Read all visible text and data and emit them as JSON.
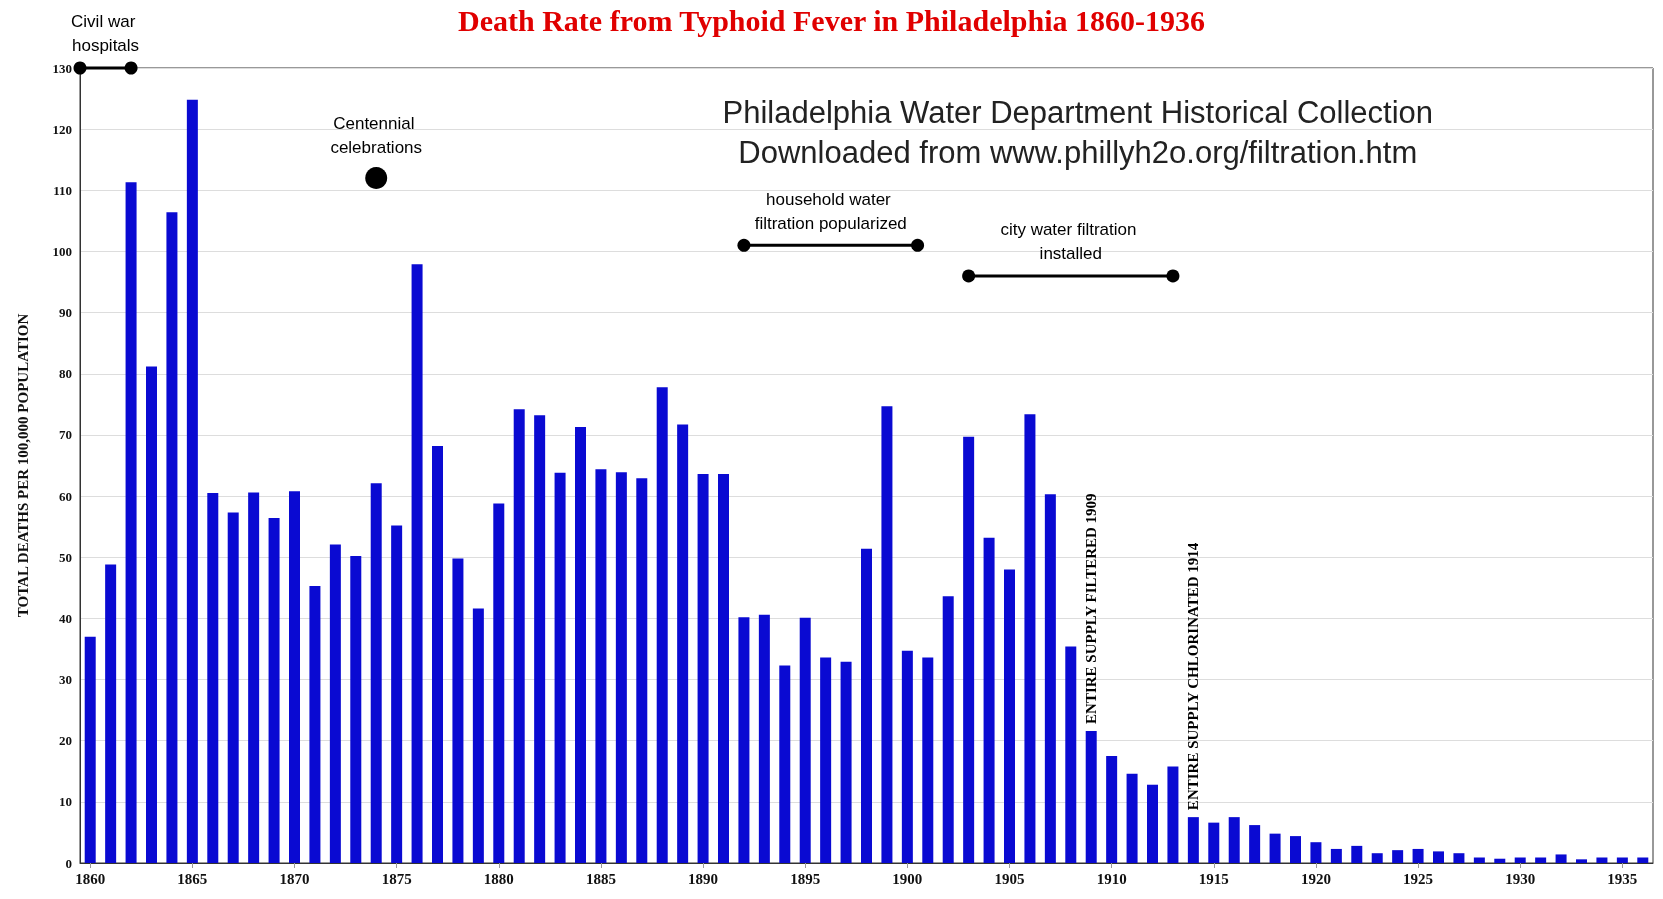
{
  "chart_data": {
    "type": "bar",
    "title": "Death Rate from Typhoid Fever in Philadelphia 1860-1936",
    "ylabel": "TOTAL DEATHS PER 100,000 POPULATION",
    "x": [
      1860,
      1861,
      1862,
      1863,
      1864,
      1865,
      1866,
      1867,
      1868,
      1869,
      1870,
      1871,
      1872,
      1873,
      1874,
      1875,
      1876,
      1877,
      1878,
      1879,
      1880,
      1881,
      1882,
      1883,
      1884,
      1885,
      1886,
      1887,
      1888,
      1889,
      1890,
      1891,
      1892,
      1893,
      1894,
      1895,
      1896,
      1897,
      1898,
      1899,
      1900,
      1901,
      1902,
      1903,
      1904,
      1905,
      1906,
      1907,
      1908,
      1909,
      1910,
      1911,
      1912,
      1913,
      1914,
      1915,
      1916,
      1917,
      1918,
      1919,
      1920,
      1921,
      1922,
      1923,
      1924,
      1925,
      1926,
      1927,
      1928,
      1929,
      1930,
      1931,
      1932,
      1933,
      1934,
      1935,
      1936
    ],
    "series": [
      {
        "color": "#0a0ad2",
        "values": [
          37,
          48.8,
          111.3,
          81.2,
          106.4,
          124.8,
          60.5,
          57.3,
          60.6,
          56.4,
          60.8,
          45.3,
          52.1,
          50.2,
          62.1,
          55.2,
          97.9,
          68.2,
          49.8,
          41.6,
          58.8,
          74.2,
          73.2,
          63.8,
          71.3,
          64.4,
          63.9,
          62.9,
          77.8,
          71.7,
          63.6,
          63.6,
          40.2,
          40.6,
          32.3,
          40.1,
          33.6,
          32.9,
          51.4,
          74.7,
          34.7,
          33.6,
          43.6,
          69.7,
          53.2,
          48,
          73.4,
          60.3,
          35.4,
          21.6,
          17.5,
          14.6,
          12.8,
          15.8,
          7.5,
          6.6,
          7.5,
          6.2,
          4.8,
          4.4,
          3.4,
          2.3,
          2.8,
          1.6,
          2.1,
          2.3,
          1.9,
          1.6,
          0.9,
          0.7,
          0.9,
          0.9,
          1.4,
          0.6,
          0.9,
          0.9,
          0.9
        ]
      },
      {
        "type": "line",
        "x": [
          1859.5,
          1862
        ],
        "values": [
          130,
          130
        ],
        "color": "#000000",
        "marker": "circle"
      },
      {
        "type": "line",
        "x": [
          1892,
          1900.5
        ],
        "values": [
          101,
          101
        ],
        "color": "#000000",
        "marker": "circle"
      },
      {
        "type": "line",
        "x": [
          1903,
          1913
        ],
        "values": [
          96,
          96
        ],
        "color": "#000000",
        "marker": "circle"
      }
    ],
    "xlim": [
      1859.5,
      1936.5
    ],
    "xticks": [
      1860,
      1865,
      1870,
      1875,
      1880,
      1885,
      1890,
      1895,
      1900,
      1905,
      1910,
      1915,
      1920,
      1925,
      1930,
      1935
    ],
    "ylim": [
      0,
      130
    ],
    "yticks": [
      0,
      10,
      20,
      30,
      40,
      50,
      60,
      70,
      80,
      90,
      100,
      110,
      120,
      130
    ],
    "grid": "y",
    "annotations": [
      "Philadelphia Water Department Historical Collection\nDownloaded from www.phillyh2o.org/filtration.htm",
      {
        "text": "Civil war hospitals",
        "x": 1860.75,
        "y": 130
      },
      {
        "text": "Centennial celebrations",
        "x": 1874,
        "y": 112
      },
      {
        "text": "household water filtration popularized",
        "x": 1896.25,
        "y": 101
      },
      {
        "text": "city water filtration installed",
        "x": 1908,
        "y": 96
      },
      {
        "text": "ENTIRE SUPPLY FILTERED 1909",
        "x": 1909,
        "y": 21.6
      },
      {
        "text": "ENTIRE SUPPLY CHLORINATED 1914",
        "x": 1914,
        "y": 7.5
      }
    ]
  }
}
